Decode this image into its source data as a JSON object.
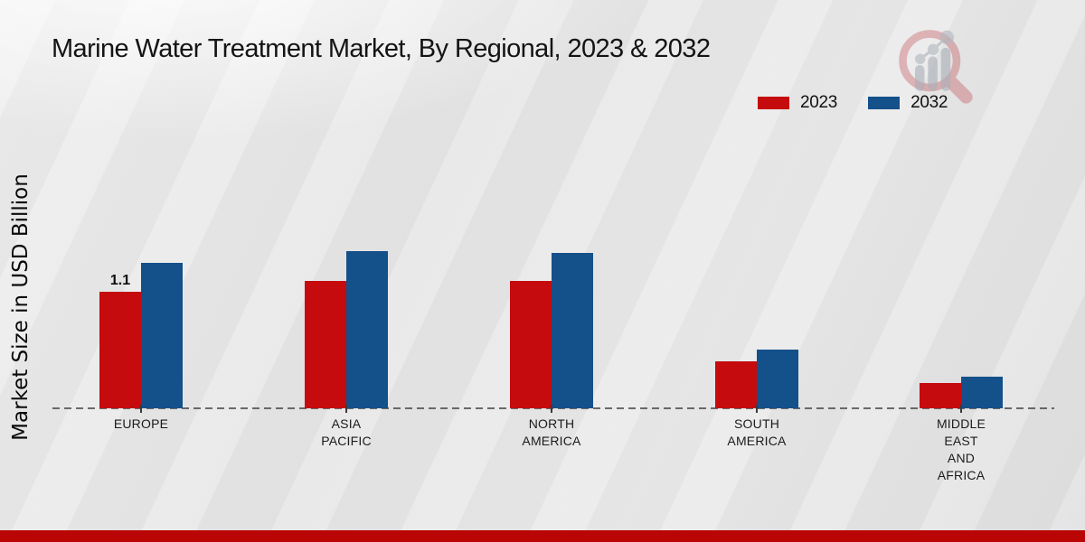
{
  "page": {
    "title": "Marine Water Treatment Market, By Regional, 2023 & 2032",
    "ylabel": "Market Size in USD Billion"
  },
  "legend": {
    "items": [
      {
        "label": "2023",
        "color": "#c50b0e"
      },
      {
        "label": "2032",
        "color": "#14508a"
      }
    ]
  },
  "colors": {
    "series_2023": "#c50b0e",
    "series_2032": "#14508a",
    "axis": "#3f3f3f",
    "bottom_stripe": "#b90604",
    "logo_ring": "#d5777e",
    "logo_bars": "#9aa0a8"
  },
  "chart_data": {
    "type": "bar",
    "title": "Marine Water Treatment Market, By Regional, 2023 & 2032",
    "ylabel": "Market Size in USD Billion",
    "unit": "USD Billion",
    "categories": [
      "EUROPE",
      "ASIA PACIFIC",
      "NORTH AMERICA",
      "SOUTH AMERICA",
      "MIDDLE EAST AND AFRICA"
    ],
    "category_label_lines": [
      [
        "EUROPE"
      ],
      [
        "ASIA",
        "PACIFIC"
      ],
      [
        "NORTH",
        "AMERICA"
      ],
      [
        "SOUTH",
        "AMERICA"
      ],
      [
        "MIDDLE",
        "EAST",
        "AND",
        "AFRICA"
      ]
    ],
    "series": [
      {
        "name": "2023",
        "color": "#c50b0e",
        "values": [
          1.1,
          1.2,
          1.2,
          0.44,
          0.24
        ]
      },
      {
        "name": "2032",
        "color": "#14508a",
        "values": [
          1.37,
          1.48,
          1.47,
          0.55,
          0.3
        ]
      }
    ],
    "data_labels": [
      {
        "series": "2023",
        "category": "EUROPE",
        "text": "1.1"
      }
    ],
    "ylim": [
      0,
      1.6
    ],
    "grid": false,
    "baseline_style": "dashed",
    "legend_position": "top-right"
  }
}
